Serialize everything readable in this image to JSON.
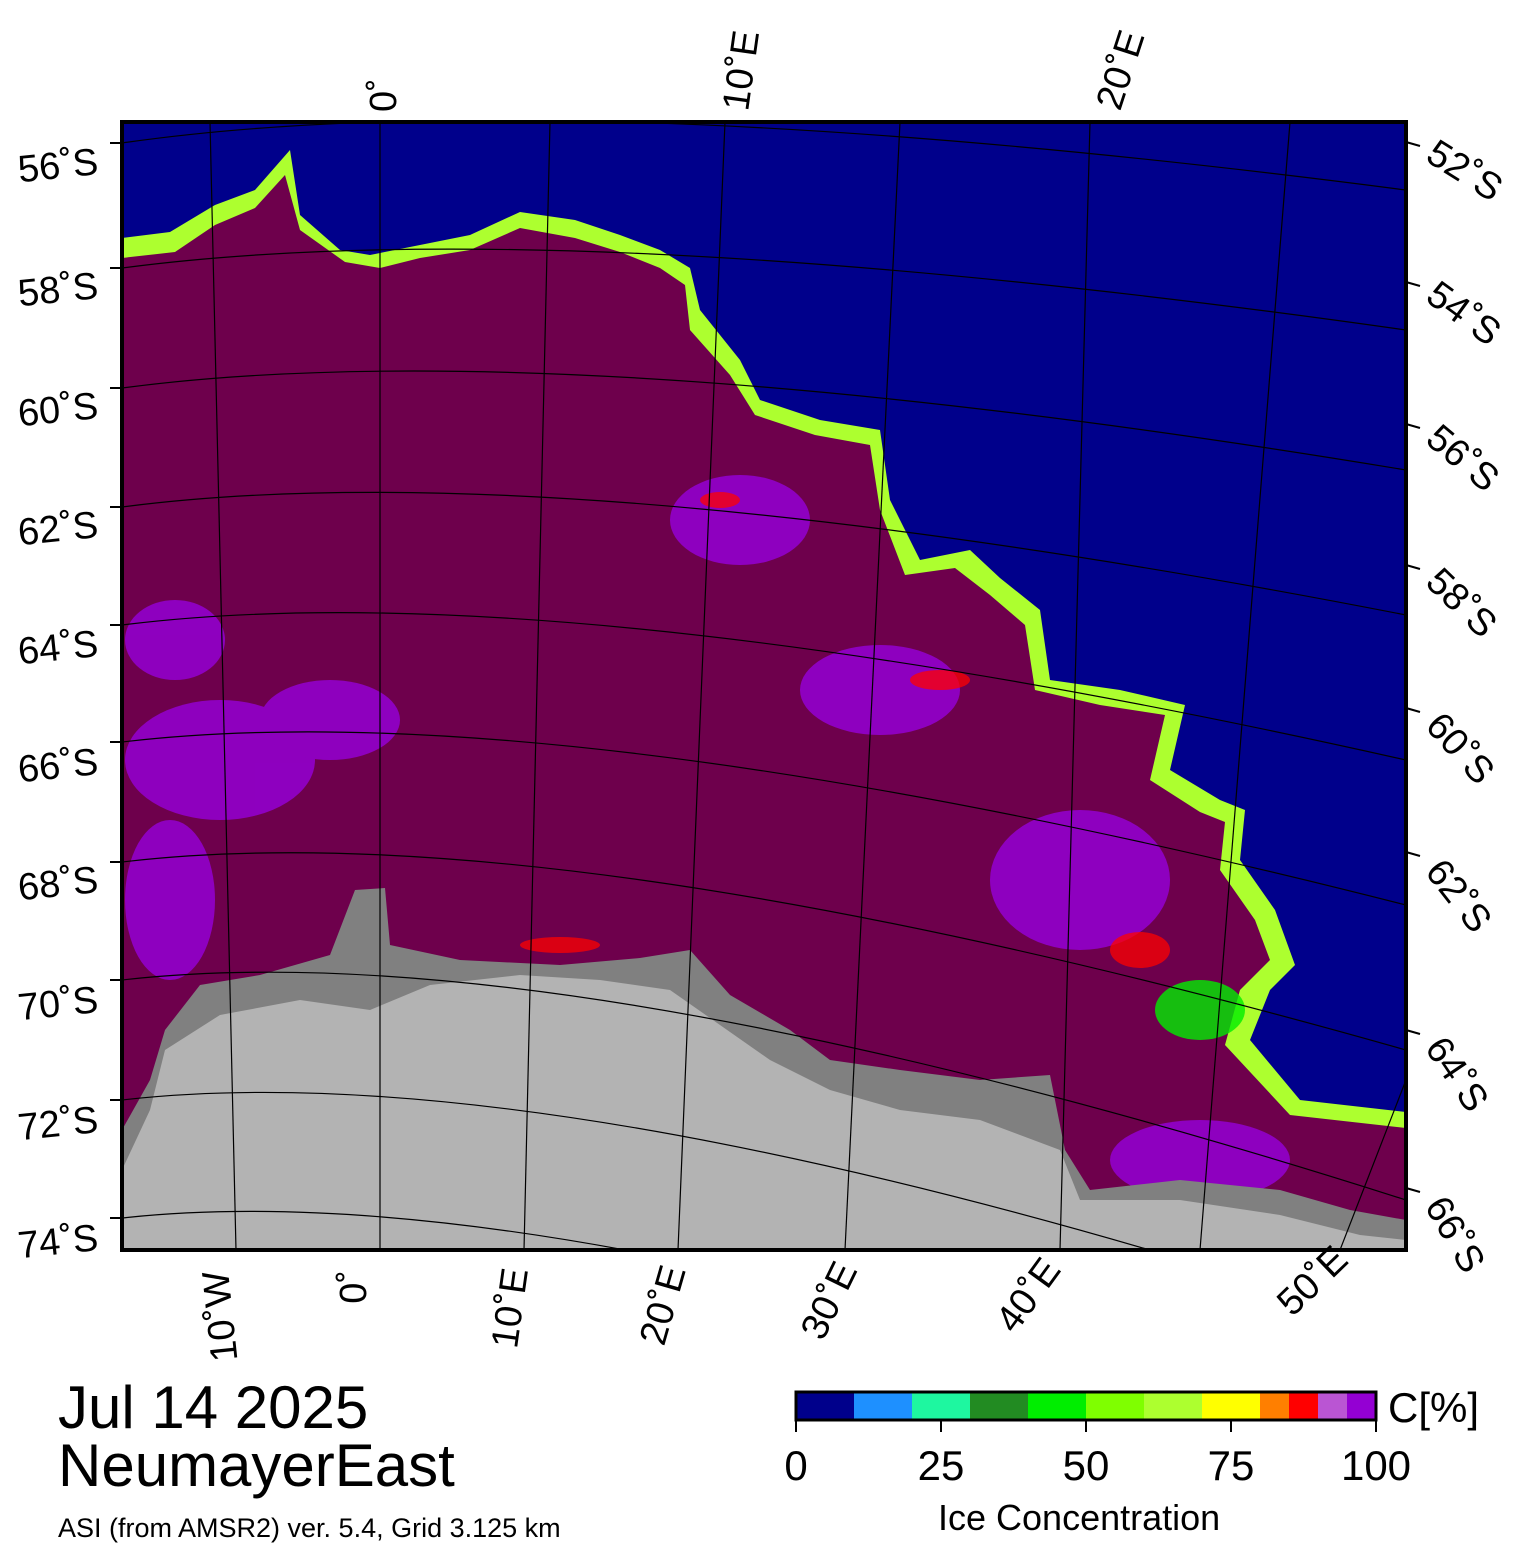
{
  "date": "Jul 14 2025",
  "region": "NeumayerEast",
  "source_line": "ASI (from AMSR2) ver. 5.4,  Grid 3.125 km",
  "colors": {
    "ocean": "#00008b",
    "ice_full": "#6e004c",
    "land_ice": "#b3b3b3",
    "ice_shelf": "#808080"
  },
  "lat_labels_left": [
    "56˚S",
    "58˚S",
    "60˚S",
    "62˚S",
    "64˚S",
    "66˚S",
    "68˚S",
    "70˚S",
    "72˚S",
    "74˚S"
  ],
  "lat_labels_right": [
    "52˚S",
    "54˚S",
    "56˚S",
    "58˚S",
    "60˚S",
    "62˚S",
    "64˚S",
    "66˚S"
  ],
  "lon_labels_top": [
    "0˚",
    "10˚E",
    "20˚E"
  ],
  "lon_labels_bottom": [
    "10˚W",
    "0˚",
    "10˚E",
    "20˚E",
    "30˚E",
    "40˚E",
    "50˚E"
  ],
  "colorbar": {
    "title": "C[%]",
    "xlabel": "Ice Concentration",
    "ticks": [
      "0",
      "25",
      "50",
      "75",
      "100"
    ],
    "bins": [
      {
        "from": 0,
        "to": 10,
        "color": "#00008b"
      },
      {
        "from": 10,
        "to": 20,
        "color": "#1e90ff"
      },
      {
        "from": 20,
        "to": 30,
        "color": "#1ef7a0"
      },
      {
        "from": 30,
        "to": 40,
        "color": "#228b22"
      },
      {
        "from": 40,
        "to": 50,
        "color": "#00ee00"
      },
      {
        "from": 50,
        "to": 60,
        "color": "#7fff00"
      },
      {
        "from": 60,
        "to": 70,
        "color": "#adff2f"
      },
      {
        "from": 70,
        "to": 80,
        "color": "#ffff00"
      },
      {
        "from": 80,
        "to": 85,
        "color": "#ff7f00"
      },
      {
        "from": 85,
        "to": 90,
        "color": "#ff0000"
      },
      {
        "from": 90,
        "to": 95,
        "color": "#ba55d3"
      },
      {
        "from": 95,
        "to": 100,
        "color": "#9400d3"
      }
    ]
  }
}
